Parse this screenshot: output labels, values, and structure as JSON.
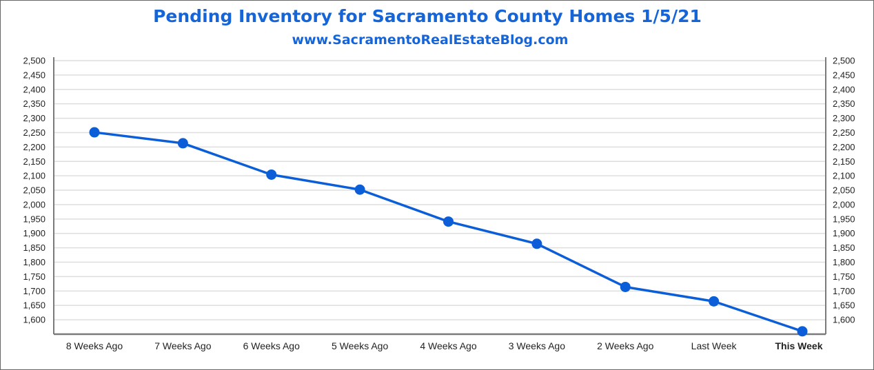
{
  "chart_data": {
    "type": "line",
    "title": "Pending Inventory for Sacramento County Homes 1/5/21",
    "subtitle": "www.SacramentoRealEstateBlog.com",
    "categories": [
      "8 Weeks Ago",
      "7 Weeks Ago",
      "6 Weeks Ago",
      "5 Weeks Ago",
      "4 Weeks Ago",
      "3 Weeks Ago",
      "2 Weeks Ago",
      "Last Week",
      "This Week"
    ],
    "highlight_category": "This Week",
    "series": [
      {
        "values": [
          2251,
          2213,
          2104,
          2052,
          1941,
          1864,
          1714,
          1664,
          1560
        ]
      }
    ],
    "ylim": [
      1550,
      2500
    ],
    "yticks": [
      1600,
      1650,
      1700,
      1750,
      1800,
      1850,
      1900,
      1950,
      2000,
      2050,
      2100,
      2150,
      2200,
      2250,
      2300,
      2350,
      2400,
      2450,
      2500
    ],
    "ytick_labels": [
      "1,600",
      "1,650",
      "1,700",
      "1,750",
      "1,800",
      "1,850",
      "1,900",
      "1,950",
      "2,000",
      "2,050",
      "2,100",
      "2,150",
      "2,200",
      "2,250",
      "2,300",
      "2,350",
      "2,400",
      "2,450",
      "2,500"
    ],
    "grid": true,
    "secondary_y_axis": true,
    "colors": {
      "line": "#0b5ed7",
      "title": "#1565d8",
      "highlight": "#1565d8",
      "grid": "#dedede",
      "axis": "#7a7a7a"
    }
  }
}
